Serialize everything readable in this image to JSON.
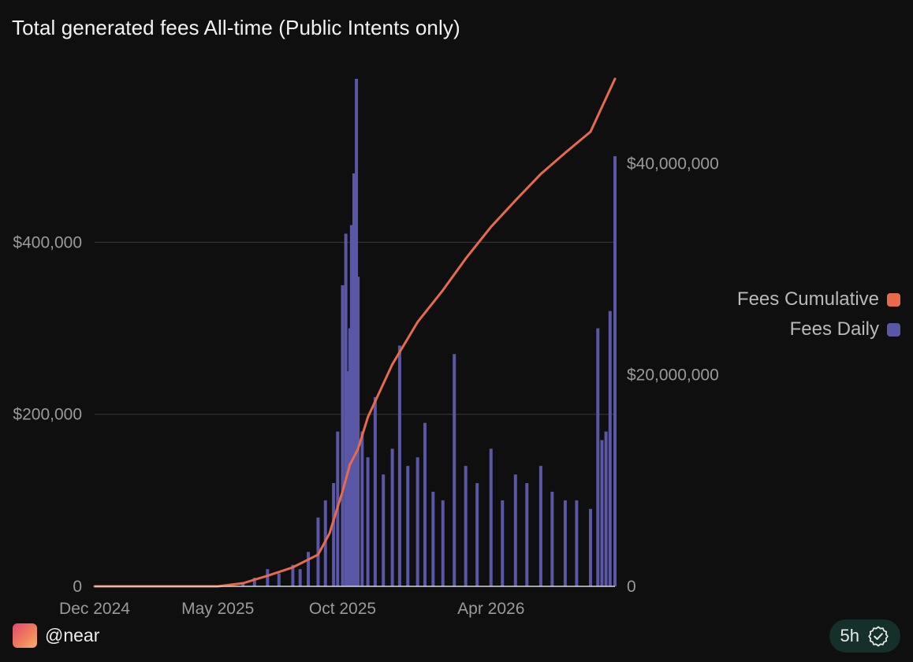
{
  "header": {
    "title": "Total generated fees All-time (Public Intents only)"
  },
  "footer": {
    "handle": "@near",
    "age": "5h"
  },
  "colors": {
    "cumulative": "#e66a4b",
    "daily": "#5a57a6",
    "grid": "#3a3a3a",
    "background": "#0f0f0f"
  },
  "chart_data": {
    "type": "bar",
    "title": "Total generated fees All-time (Public Intents only)",
    "legend": {
      "position": "right",
      "entries": [
        "Fees Cumulative",
        "Fees Daily"
      ]
    },
    "x_ticks": [
      "Dec 2024",
      "May 2025",
      "Oct 2025",
      "Apr 2026"
    ],
    "x_tick_dates": [
      "2024-12-01",
      "2025-05-01",
      "2025-10-01",
      "2026-04-01"
    ],
    "x_range": [
      "2024-12-01",
      "2026-08-31"
    ],
    "y_left": {
      "ticks": [
        "0",
        "$200,000",
        "$400,000"
      ],
      "tick_values": [
        0,
        200000,
        400000
      ],
      "range": [
        0,
        590000
      ]
    },
    "y_right": {
      "ticks": [
        "0",
        "$20,000,000",
        "$40,000,000"
      ],
      "tick_values": [
        0,
        20000000,
        40000000
      ],
      "range": [
        0,
        48000000
      ]
    },
    "grid": true,
    "series": [
      {
        "name": "Fees Daily",
        "type": "bar",
        "axis": "left",
        "x": [
          "2025-04-15",
          "2025-05-15",
          "2025-06-01",
          "2025-06-15",
          "2025-07-01",
          "2025-07-15",
          "2025-08-01",
          "2025-08-10",
          "2025-08-20",
          "2025-09-01",
          "2025-09-10",
          "2025-09-20",
          "2025-09-25",
          "2025-10-01",
          "2025-10-05",
          "2025-10-08",
          "2025-10-10",
          "2025-10-12",
          "2025-10-15",
          "2025-10-18",
          "2025-10-20",
          "2025-10-25",
          "2025-11-01",
          "2025-11-10",
          "2025-11-20",
          "2025-12-01",
          "2025-12-10",
          "2025-12-20",
          "2026-01-01",
          "2026-01-10",
          "2026-01-20",
          "2026-02-01",
          "2026-02-15",
          "2026-03-01",
          "2026-03-15",
          "2026-04-01",
          "2026-04-15",
          "2026-05-01",
          "2026-05-15",
          "2026-06-01",
          "2026-06-15",
          "2026-07-01",
          "2026-07-15",
          "2026-08-01",
          "2026-08-10",
          "2026-08-15",
          "2026-08-20",
          "2026-08-25",
          "2026-08-31"
        ],
        "values": [
          0,
          1000,
          5000,
          10000,
          20000,
          15000,
          25000,
          20000,
          40000,
          80000,
          100000,
          120000,
          180000,
          350000,
          410000,
          250000,
          300000,
          420000,
          480000,
          590000,
          360000,
          180000,
          150000,
          220000,
          130000,
          160000,
          280000,
          140000,
          150000,
          190000,
          110000,
          100000,
          270000,
          140000,
          120000,
          160000,
          100000,
          130000,
          120000,
          140000,
          110000,
          100000,
          100000,
          90000,
          300000,
          170000,
          180000,
          320000,
          500000
        ]
      },
      {
        "name": "Fees Cumulative",
        "type": "line",
        "axis": "right",
        "x": [
          "2024-12-01",
          "2025-05-01",
          "2025-06-01",
          "2025-07-01",
          "2025-08-01",
          "2025-09-01",
          "2025-09-15",
          "2025-10-01",
          "2025-10-10",
          "2025-10-20",
          "2025-11-01",
          "2025-12-01",
          "2026-01-01",
          "2026-02-01",
          "2026-03-01",
          "2026-04-01",
          "2026-05-01",
          "2026-06-01",
          "2026-07-01",
          "2026-08-01",
          "2026-08-31"
        ],
        "values": [
          0,
          0,
          300000,
          1000000,
          1800000,
          3000000,
          5000000,
          9000000,
          11500000,
          13000000,
          16000000,
          21000000,
          25000000,
          28000000,
          31000000,
          34000000,
          36500000,
          39000000,
          41000000,
          43000000,
          48000000
        ]
      }
    ]
  }
}
